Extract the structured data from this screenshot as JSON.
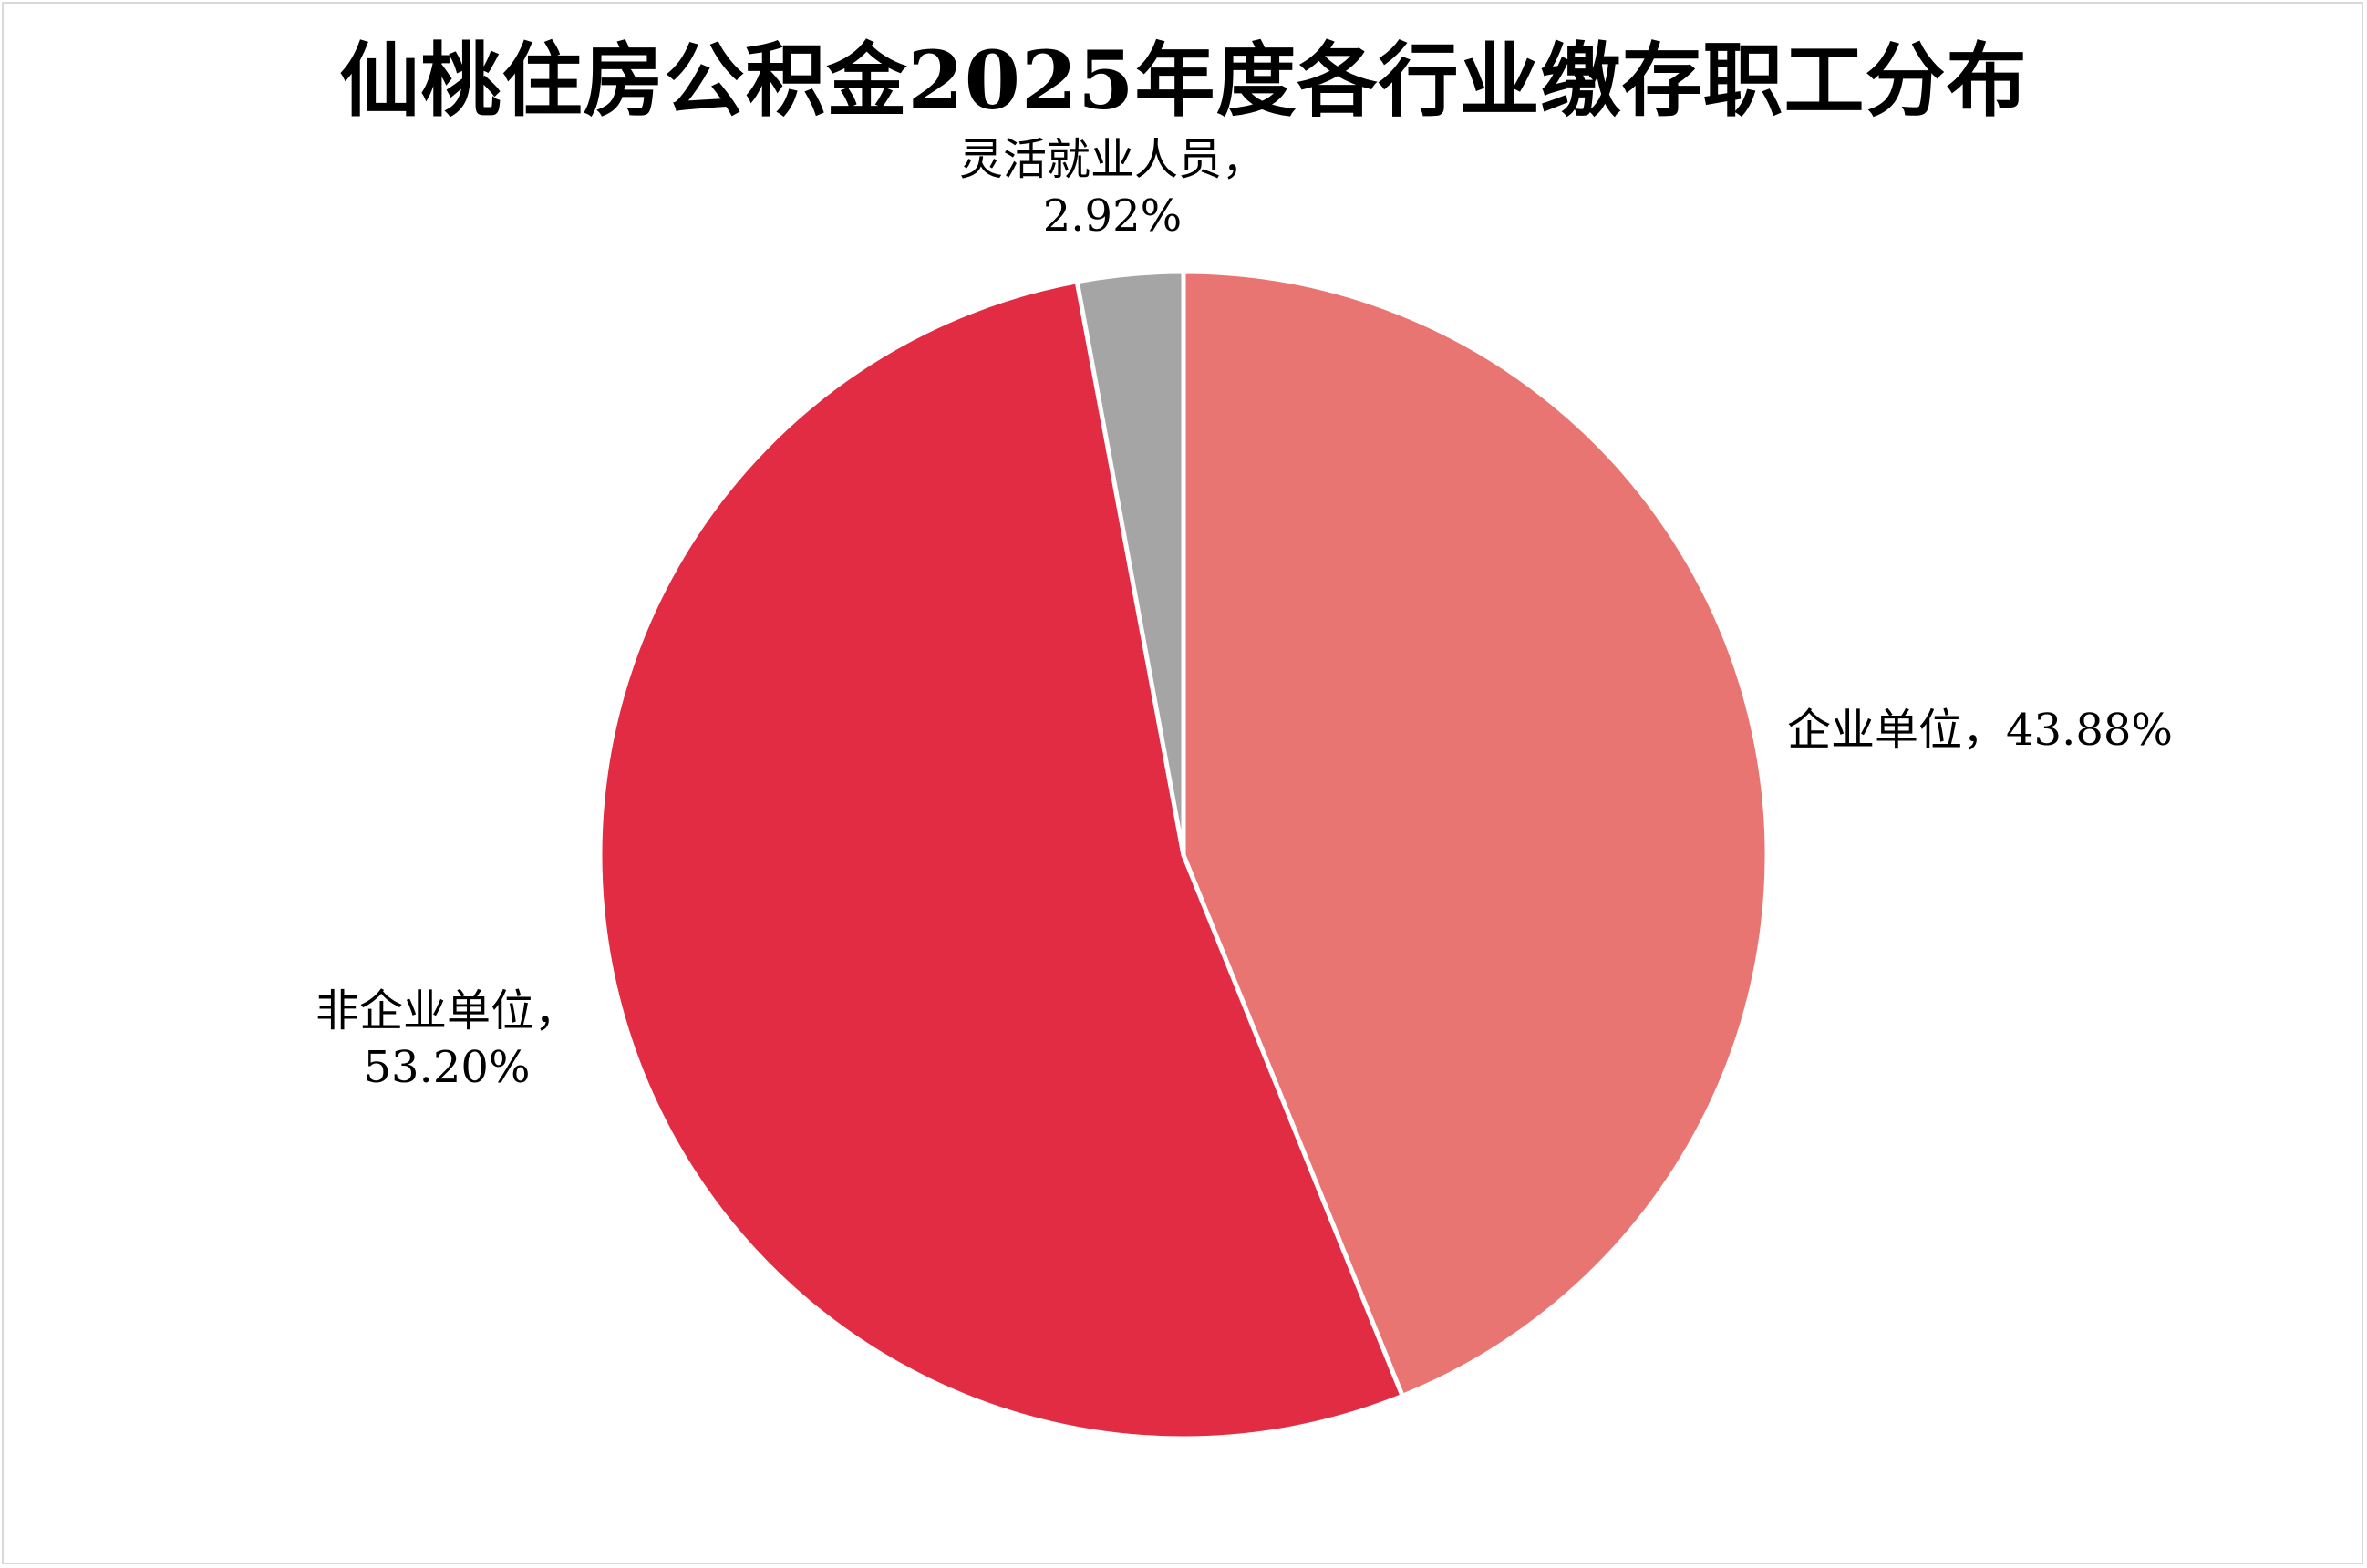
{
  "chart_data": {
    "type": "pie",
    "title": "仙桃住房公积金2025年度各行业缴存职工分布",
    "slices": [
      {
        "name": "企业单位",
        "value": 43.88,
        "label": "企业单位，43.88%",
        "color": "#e87572"
      },
      {
        "name": "非企业单位",
        "value": 53.2,
        "label_line1": "非企业单位，",
        "label_line2": "53.20%",
        "color": "#e22c43"
      },
      {
        "name": "灵活就业人员",
        "value": 2.92,
        "label_line1": "灵活就业人员，",
        "label_line2": "2.92%",
        "color": "#a5a5a5"
      }
    ],
    "start_angle": "12 o'clock",
    "direction": "clockwise",
    "legend": "none"
  }
}
